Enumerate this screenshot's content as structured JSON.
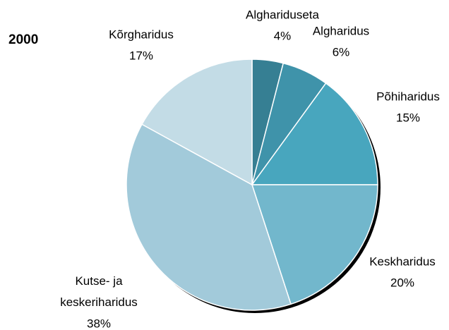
{
  "chart_data": {
    "type": "pie",
    "title": "2000",
    "categories": [
      "Algharidusеta",
      "Algharidus",
      "Põhiharidus",
      "Keskharidus",
      "Kutse- ja keskeriharidus",
      "Kõrgharidus"
    ],
    "values": [
      4,
      6,
      15,
      20,
      38,
      17
    ],
    "value_labels": [
      "4%",
      "6%",
      "15%",
      "20%",
      "38%",
      "17%"
    ],
    "colors": [
      "#367f93",
      "#3f93aa",
      "#48a6be",
      "#72b7cc",
      "#a2cada",
      "#c3dce6"
    ]
  }
}
